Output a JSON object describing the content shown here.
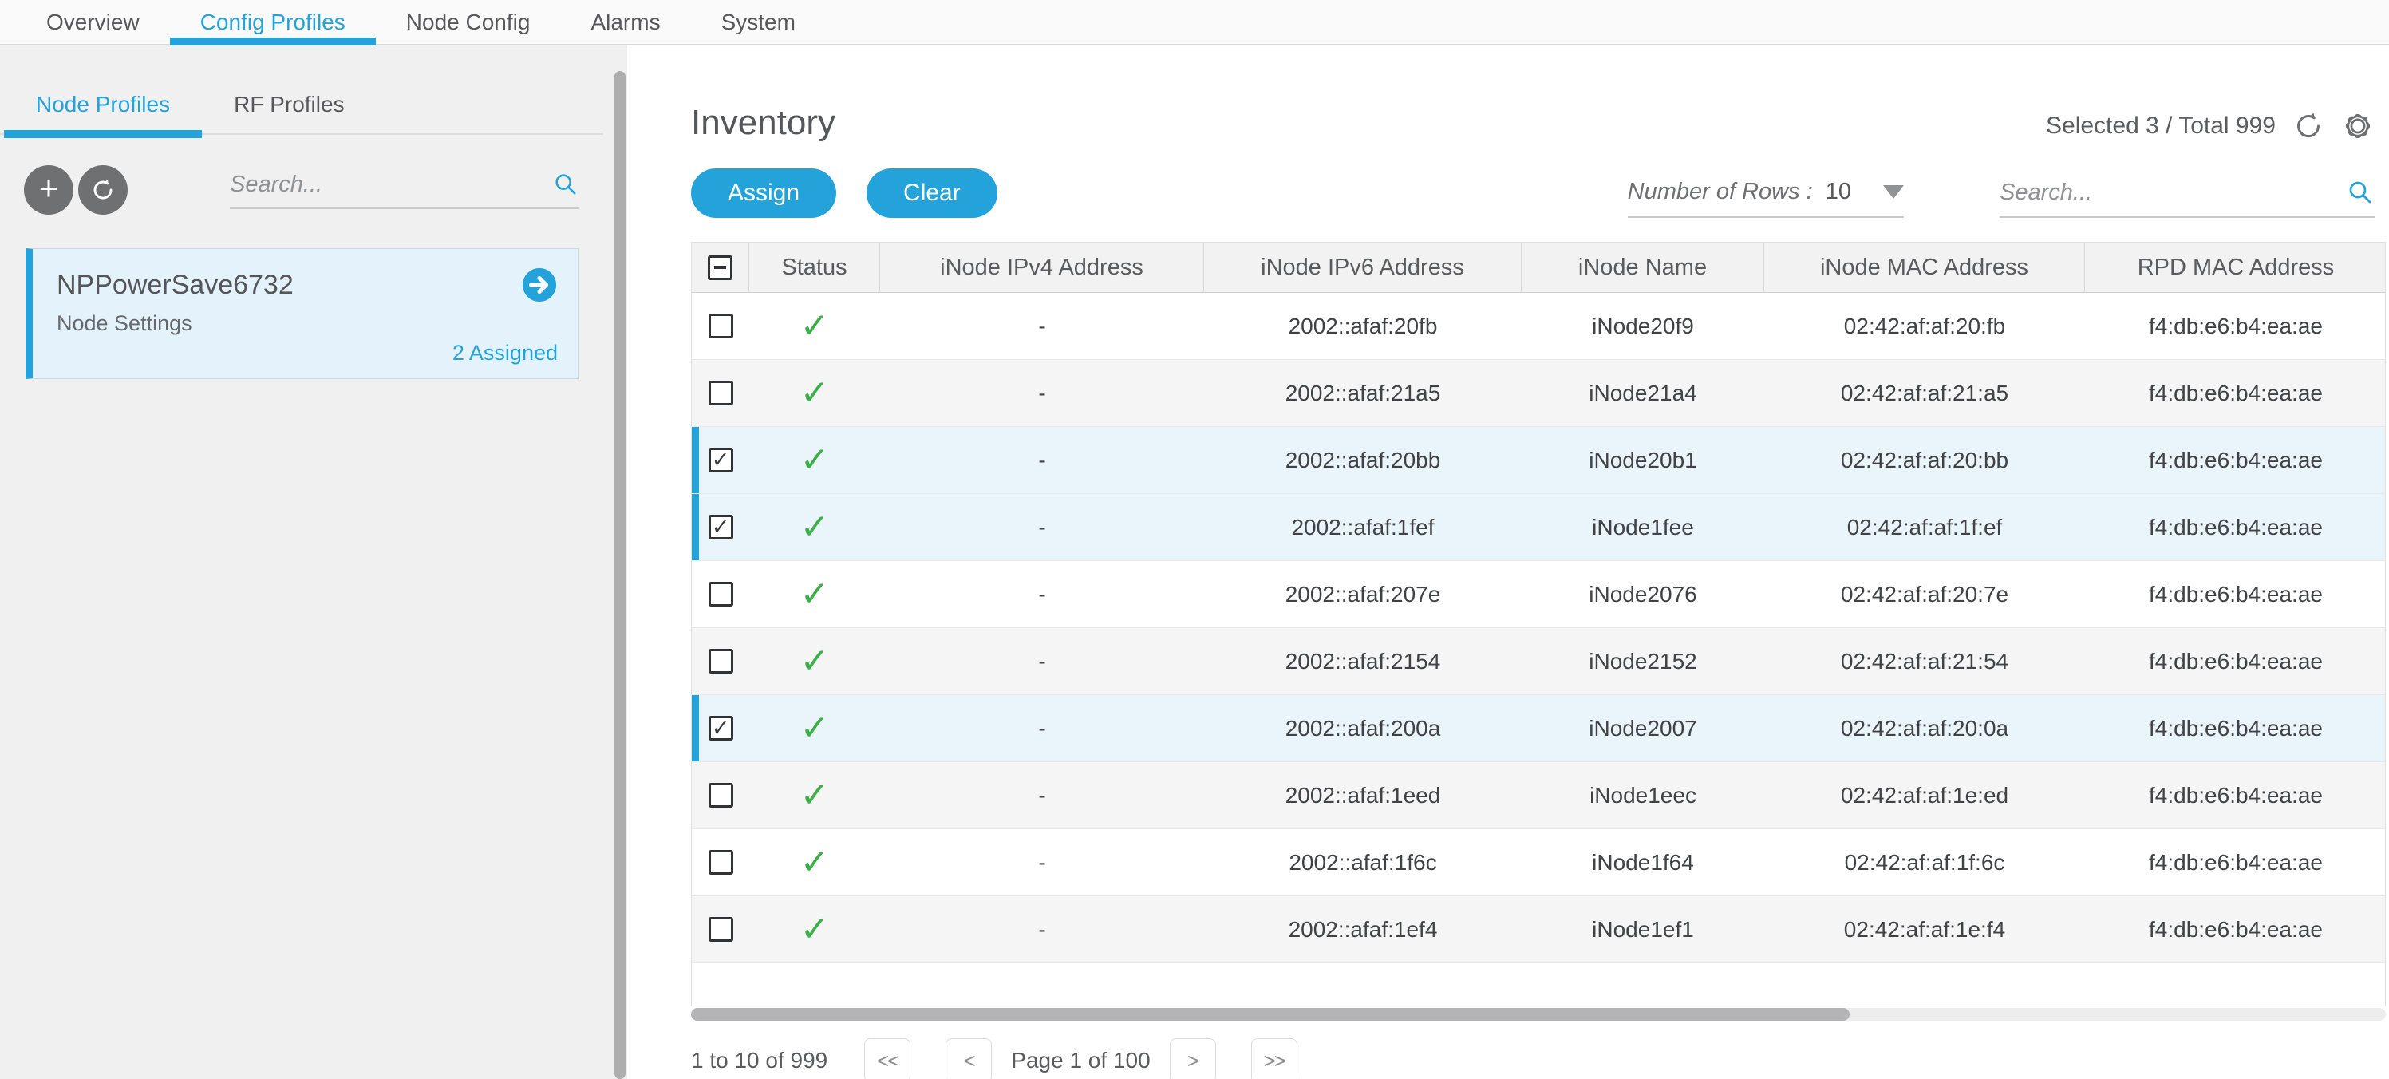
{
  "colors": {
    "accent": "#24a3db",
    "green": "#3eae49",
    "selected_row_bg": "#eaf4fb",
    "card_bg": "#e3f2fb",
    "sidebar_bg": "#f0f0f1"
  },
  "nav": {
    "items": [
      {
        "label": "Overview",
        "active": false
      },
      {
        "label": "Config Profiles",
        "active": true
      },
      {
        "label": "Node Config",
        "active": false
      },
      {
        "label": "Alarms",
        "active": false
      },
      {
        "label": "System",
        "active": false
      }
    ]
  },
  "sidebar": {
    "tabs": [
      {
        "label": "Node Profiles",
        "active": true
      },
      {
        "label": "RF Profiles",
        "active": false
      }
    ],
    "add_button_glyph": "+",
    "search_placeholder": "Search...",
    "profile_card": {
      "title": "NPPowerSave6732",
      "subtitle": "Node Settings",
      "assigned": "2 Assigned"
    }
  },
  "main": {
    "title": "Inventory",
    "selection_summary": "Selected 3 / Total 999",
    "actions": {
      "assign": "Assign",
      "clear": "Clear"
    },
    "rows_control": {
      "label": "Number of Rows :",
      "value": "10"
    },
    "search_placeholder": "Search...",
    "table": {
      "header_checkbox": "indeterminate",
      "columns": [
        "Status",
        "iNode IPv4 Address",
        "iNode IPv6 Address",
        "iNode Name",
        "iNode MAC Address",
        "RPD MAC Address"
      ],
      "rows": [
        {
          "checked": false,
          "selected": false,
          "status": "ok",
          "ipv4": "-",
          "ipv6": "2002::afaf:20fb",
          "name": "iNode20f9",
          "mac": "02:42:af:af:20:fb",
          "rpd_mac": "f4:db:e6:b4:ea:ae"
        },
        {
          "checked": false,
          "selected": false,
          "status": "ok",
          "ipv4": "-",
          "ipv6": "2002::afaf:21a5",
          "name": "iNode21a4",
          "mac": "02:42:af:af:21:a5",
          "rpd_mac": "f4:db:e6:b4:ea:ae"
        },
        {
          "checked": true,
          "selected": true,
          "status": "ok",
          "ipv4": "-",
          "ipv6": "2002::afaf:20bb",
          "name": "iNode20b1",
          "mac": "02:42:af:af:20:bb",
          "rpd_mac": "f4:db:e6:b4:ea:ae"
        },
        {
          "checked": true,
          "selected": true,
          "status": "ok",
          "ipv4": "-",
          "ipv6": "2002::afaf:1fef",
          "name": "iNode1fee",
          "mac": "02:42:af:af:1f:ef",
          "rpd_mac": "f4:db:e6:b4:ea:ae"
        },
        {
          "checked": false,
          "selected": false,
          "status": "ok",
          "ipv4": "-",
          "ipv6": "2002::afaf:207e",
          "name": "iNode2076",
          "mac": "02:42:af:af:20:7e",
          "rpd_mac": "f4:db:e6:b4:ea:ae"
        },
        {
          "checked": false,
          "selected": false,
          "status": "ok",
          "ipv4": "-",
          "ipv6": "2002::afaf:2154",
          "name": "iNode2152",
          "mac": "02:42:af:af:21:54",
          "rpd_mac": "f4:db:e6:b4:ea:ae"
        },
        {
          "checked": true,
          "selected": true,
          "status": "ok",
          "ipv4": "-",
          "ipv6": "2002::afaf:200a",
          "name": "iNode2007",
          "mac": "02:42:af:af:20:0a",
          "rpd_mac": "f4:db:e6:b4:ea:ae"
        },
        {
          "checked": false,
          "selected": false,
          "status": "ok",
          "ipv4": "-",
          "ipv6": "2002::afaf:1eed",
          "name": "iNode1eec",
          "mac": "02:42:af:af:1e:ed",
          "rpd_mac": "f4:db:e6:b4:ea:ae"
        },
        {
          "checked": false,
          "selected": false,
          "status": "ok",
          "ipv4": "-",
          "ipv6": "2002::afaf:1f6c",
          "name": "iNode1f64",
          "mac": "02:42:af:af:1f:6c",
          "rpd_mac": "f4:db:e6:b4:ea:ae"
        },
        {
          "checked": false,
          "selected": false,
          "status": "ok",
          "ipv4": "-",
          "ipv6": "2002::afaf:1ef4",
          "name": "iNode1ef1",
          "mac": "02:42:af:af:1e:f4",
          "rpd_mac": "f4:db:e6:b4:ea:ae"
        }
      ]
    },
    "pagination": {
      "range": "1 to 10 of 999",
      "first": "<<",
      "prev": "<",
      "page": "Page 1 of 100",
      "next": ">",
      "last": ">>"
    }
  }
}
